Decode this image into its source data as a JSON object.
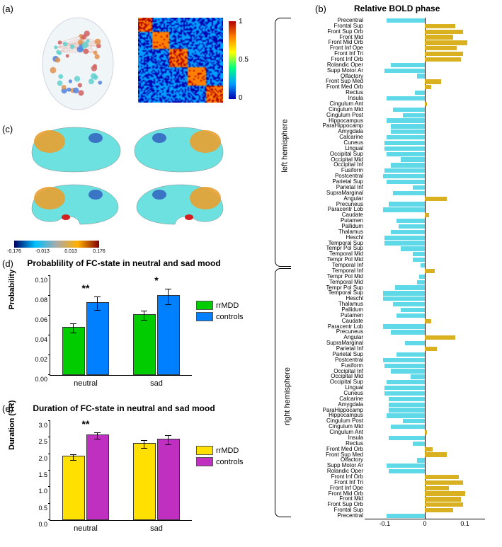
{
  "labels": {
    "a": "(a)",
    "b": "(b)",
    "c": "(c)",
    "d": "(d)",
    "e": "(e)"
  },
  "colorbar_a": {
    "ticks": [
      "0",
      "0.5",
      "1"
    ],
    "gradient": [
      "#0000b0",
      "#00a0ff",
      "#00ff80",
      "#ffff00",
      "#ff8000",
      "#b00000"
    ]
  },
  "panel_c": {
    "surface_fill": "#6de0e0",
    "frontal_patch": "#e8a030",
    "small_patch": "#d02020",
    "colorbar_ticks": [
      "-0.176",
      "-0.013",
      "0.013",
      "0.176"
    ],
    "colorbar_gradient": [
      "#000060",
      "#00c0ff",
      "#aaaaaa",
      "#ffb000",
      "#800000"
    ]
  },
  "panel_d": {
    "title": "Probablility of FC-state in neutral and sad mood",
    "y_label": "Probability",
    "categories": [
      "neutral",
      "sad"
    ],
    "series": [
      {
        "name": "rrMDD",
        "color": "#00cc00"
      },
      {
        "name": "controls",
        "color": "#0080ff"
      }
    ],
    "values": [
      [
        0.047,
        0.072
      ],
      [
        0.06,
        0.079
      ]
    ],
    "errors": [
      [
        0.005,
        0.007
      ],
      [
        0.005,
        0.008
      ]
    ],
    "sig": [
      "**",
      "*"
    ],
    "ylim": [
      0,
      0.1
    ],
    "ytick_step": 0.02
  },
  "panel_e": {
    "title": "Duration of FC-state in neutral and sad mood",
    "y_label": "Duration (TR)",
    "categories": [
      "neutral",
      "sad"
    ],
    "series": [
      {
        "name": "rrMDD",
        "color": "#ffe000"
      },
      {
        "name": "controls",
        "color": "#c030c0"
      }
    ],
    "values": [
      [
        1.9,
        2.55
      ],
      [
        2.3,
        2.42
      ]
    ],
    "errors": [
      [
        0.1,
        0.1
      ],
      [
        0.13,
        0.15
      ]
    ],
    "sig": [
      "**",
      ""
    ],
    "ylim": [
      0,
      3
    ],
    "ytick_step": 0.5
  },
  "panel_b": {
    "title": "Relative BOLD phase",
    "xlim": [
      -0.15,
      0.15
    ],
    "xticks": [
      "-0.1",
      "0",
      "0.1"
    ],
    "color_pos": "#d8b020",
    "color_neg": "#5fd8e8",
    "hemispheres": [
      {
        "name": "left hemisphere",
        "regions": [
          {
            "l": "Precentral",
            "v": -0.095
          },
          {
            "l": "Frontal Sup",
            "v": 0.075
          },
          {
            "l": "Front Sup Orb",
            "v": 0.095
          },
          {
            "l": "Front Mid",
            "v": 0.07
          },
          {
            "l": "Front Mid Orb",
            "v": 0.105
          },
          {
            "l": "Front Inf Ope",
            "v": 0.08
          },
          {
            "l": "Front Inf Tri",
            "v": 0.095
          },
          {
            "l": "Front Inf Orb",
            "v": 0.09
          },
          {
            "l": "Rolandic Oper",
            "v": -0.085
          },
          {
            "l": "Supp Motor Ar",
            "v": -0.1
          },
          {
            "l": "Olfactory",
            "v": -0.02
          },
          {
            "l": "Front Sup Med",
            "v": 0.04
          },
          {
            "l": "Front Med Orb",
            "v": 0.015
          },
          {
            "l": "Rectus",
            "v": -0.025
          },
          {
            "l": "Insula",
            "v": -0.095
          },
          {
            "l": "Cingulum Ant",
            "v": 0.005
          },
          {
            "l": "Cingulum Mid",
            "v": -0.08
          },
          {
            "l": "Cingulum Post",
            "v": -0.055
          },
          {
            "l": "Hippocampus",
            "v": -0.095
          },
          {
            "l": "ParaHippocamp",
            "v": -0.085
          },
          {
            "l": "Amygdala",
            "v": -0.085
          },
          {
            "l": "Calcarine",
            "v": -0.095
          },
          {
            "l": "Cuneus",
            "v": -0.1
          },
          {
            "l": "Lingual",
            "v": -0.1
          },
          {
            "l": "Occipital Sup",
            "v": -0.095
          },
          {
            "l": "Occipital Mid",
            "v": -0.06
          },
          {
            "l": "Occipital Inf",
            "v": -0.085
          },
          {
            "l": "Fusiform",
            "v": -0.1
          },
          {
            "l": "Postcentral",
            "v": -0.105
          },
          {
            "l": "Parietal Sup",
            "v": -0.095
          },
          {
            "l": "Parietal Inf",
            "v": -0.03
          },
          {
            "l": "SupraMarginal",
            "v": -0.08
          },
          {
            "l": "Angular",
            "v": 0.055
          },
          {
            "l": "Precuneus",
            "v": -0.09
          },
          {
            "l": "Paracentr Lob",
            "v": -0.105
          },
          {
            "l": "Caudate",
            "v": 0.01
          },
          {
            "l": "Putamen",
            "v": -0.07
          },
          {
            "l": "Pallidum",
            "v": -0.065
          },
          {
            "l": "Thalamus",
            "v": -0.085
          },
          {
            "l": "Heschl",
            "v": -0.1
          },
          {
            "l": "Temporal Sup",
            "v": -0.1
          },
          {
            "l": "Tempr Pol Sup",
            "v": -0.06
          },
          {
            "l": "Temporal Mid",
            "v": -0.03
          },
          {
            "l": "Tempr Pol Mid",
            "v": -0.03
          },
          {
            "l": "Temporal Inf",
            "v": -0.01
          }
        ]
      },
      {
        "name": "right hemisphere",
        "regions": [
          {
            "l": "Temporal Inf",
            "v": 0.025
          },
          {
            "l": "Tempr Pol Mid",
            "v": -0.015
          },
          {
            "l": "Temporal Mid",
            "v": -0.02
          },
          {
            "l": "Tempr Pol Sup",
            "v": -0.075
          },
          {
            "l": "Temporal Sup",
            "v": -0.105
          },
          {
            "l": "Heschl",
            "v": -0.105
          },
          {
            "l": "Thalamus",
            "v": -0.08
          },
          {
            "l": "Pallidum",
            "v": -0.06
          },
          {
            "l": "Putamen",
            "v": -0.07
          },
          {
            "l": "Caudate",
            "v": 0.015
          },
          {
            "l": "Paracentr Lob",
            "v": -0.105
          },
          {
            "l": "Precuneus",
            "v": -0.085
          },
          {
            "l": "Angular",
            "v": 0.075
          },
          {
            "l": "SupraMarginal",
            "v": -0.05
          },
          {
            "l": "Parietal Inf",
            "v": 0.03
          },
          {
            "l": "Parietal Sup",
            "v": -0.07
          },
          {
            "l": "Postcentral",
            "v": -0.105
          },
          {
            "l": "Fusiform",
            "v": -0.1
          },
          {
            "l": "Occipital Inf",
            "v": -0.085
          },
          {
            "l": "Occipital Mid",
            "v": -0.035
          },
          {
            "l": "Occipital Sup",
            "v": -0.095
          },
          {
            "l": "Lingual",
            "v": -0.1
          },
          {
            "l": "Cuneus",
            "v": -0.1
          },
          {
            "l": "Calcarine",
            "v": -0.09
          },
          {
            "l": "Amygdala",
            "v": -0.09
          },
          {
            "l": "ParaHippocamp",
            "v": -0.09
          },
          {
            "l": "Hippocampus",
            "v": -0.095
          },
          {
            "l": "Cingulum Post",
            "v": -0.055
          },
          {
            "l": "Cingulum Mid",
            "v": -0.085
          },
          {
            "l": "Cingulum Ant",
            "v": 0.005
          },
          {
            "l": "Insula",
            "v": -0.09
          },
          {
            "l": "Rectus",
            "v": -0.03
          },
          {
            "l": "Front Med Orb",
            "v": 0.02
          },
          {
            "l": "Front Sup Med",
            "v": 0.055
          },
          {
            "l": "Olfactory",
            "v": -0.02
          },
          {
            "l": "Supp Motor Ar",
            "v": -0.095
          },
          {
            "l": "Rolandic Oper",
            "v": -0.09
          },
          {
            "l": "Front Inf Orb",
            "v": 0.085
          },
          {
            "l": "Front Inf Tri",
            "v": 0.095
          },
          {
            "l": "Front Inf Ope",
            "v": 0.06
          },
          {
            "l": "Front Mid Orb",
            "v": 0.1
          },
          {
            "l": "Front Mid",
            "v": 0.09
          },
          {
            "l": "Front Sup Orb",
            "v": 0.095
          },
          {
            "l": "Frontal Sup",
            "v": 0.07
          },
          {
            "l": "Precentral",
            "v": -0.095
          }
        ]
      }
    ]
  }
}
